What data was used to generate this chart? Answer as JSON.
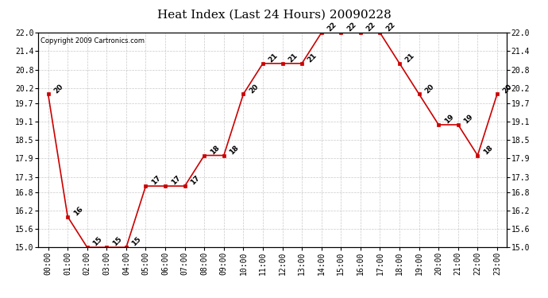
{
  "title": "Heat Index (Last 24 Hours) 20090228",
  "copyright": "Copyright 2009 Cartronics.com",
  "hours": [
    "00:00",
    "01:00",
    "02:00",
    "03:00",
    "04:00",
    "05:00",
    "06:00",
    "07:00",
    "08:00",
    "09:00",
    "10:00",
    "11:00",
    "12:00",
    "13:00",
    "14:00",
    "15:00",
    "16:00",
    "17:00",
    "18:00",
    "19:00",
    "20:00",
    "21:00",
    "22:00",
    "23:00"
  ],
  "values": [
    20,
    16,
    15,
    15,
    15,
    17,
    17,
    17,
    18,
    18,
    20,
    21,
    21,
    21,
    22,
    22,
    22,
    22,
    21,
    20,
    19,
    19,
    18,
    20
  ],
  "line_color": "#cc0000",
  "marker_color": "#cc0000",
  "bg_color": "#ffffff",
  "plot_bg_color": "#ffffff",
  "grid_color": "#bbbbbb",
  "title_fontsize": 11,
  "tick_fontsize": 7,
  "label_fontsize": 6.5,
  "copyright_fontsize": 6,
  "ylim": [
    15.0,
    22.0
  ],
  "yticks": [
    15.0,
    15.6,
    16.2,
    16.8,
    17.3,
    17.9,
    18.5,
    19.1,
    19.7,
    20.2,
    20.8,
    21.4,
    22.0
  ]
}
